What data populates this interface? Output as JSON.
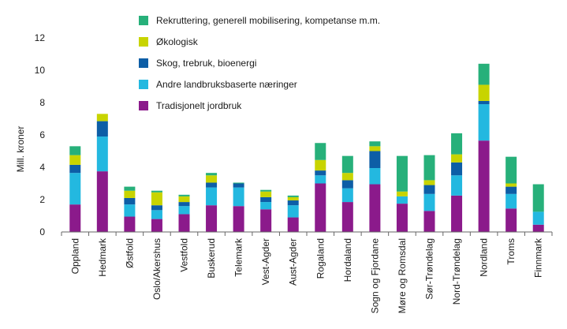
{
  "chart_data": {
    "type": "bar",
    "stacked": true,
    "ylabel": "Mill. kroner",
    "ylim": [
      0,
      12
    ],
    "yticks": [
      0,
      2,
      4,
      6,
      8,
      10,
      12
    ],
    "grid": false,
    "legend_position": "top",
    "categories": [
      "Oppland",
      "Hedmark",
      "Østfold",
      "Oslo/Akershus",
      "Vestfold",
      "Buskerud",
      "Telemark",
      "Vest-Agder",
      "Aust-Agder",
      "Rogaland",
      "Hordaland",
      "Sogn og Fjordane",
      "Møre og Romsdal",
      "Sør-Trøndelag",
      "Nord-Trøndelag",
      "Nordland",
      "Troms",
      "Finnmark"
    ],
    "series": [
      {
        "name": "Tradisjonelt jordbruk",
        "color": "#8b1a8b",
        "values": [
          1.7,
          3.75,
          0.95,
          0.8,
          1.1,
          1.65,
          1.6,
          1.4,
          0.9,
          3.0,
          1.85,
          2.95,
          1.75,
          1.3,
          2.25,
          5.65,
          1.45,
          0.45
        ]
      },
      {
        "name": "Andre landbruksbaserte næringer",
        "color": "#23b8e0",
        "values": [
          1.95,
          2.15,
          0.75,
          0.55,
          0.5,
          1.1,
          1.15,
          0.45,
          0.75,
          0.5,
          0.85,
          1.0,
          0.45,
          1.05,
          1.25,
          2.25,
          0.9,
          0.8
        ]
      },
      {
        "name": "Skog, trebruk, bioenergi",
        "color": "#0d5ea6",
        "values": [
          0.5,
          0.95,
          0.4,
          0.3,
          0.25,
          0.3,
          0.25,
          0.3,
          0.3,
          0.3,
          0.5,
          1.05,
          0.0,
          0.55,
          0.8,
          0.2,
          0.45,
          0.0
        ]
      },
      {
        "name": "Økologisk",
        "color": "#c8d400",
        "values": [
          0.6,
          0.45,
          0.45,
          0.8,
          0.35,
          0.45,
          0.0,
          0.35,
          0.2,
          0.65,
          0.45,
          0.3,
          0.3,
          0.3,
          0.5,
          1.0,
          0.2,
          0.0
        ]
      },
      {
        "name": "Rekruttering, generell mobilisering, kompetanse m.m.",
        "color": "#27b07a",
        "values": [
          0.55,
          0.0,
          0.25,
          0.1,
          0.1,
          0.15,
          0.05,
          0.1,
          0.1,
          1.05,
          1.05,
          0.3,
          2.2,
          1.55,
          1.3,
          1.3,
          1.65,
          1.7
        ]
      }
    ]
  }
}
